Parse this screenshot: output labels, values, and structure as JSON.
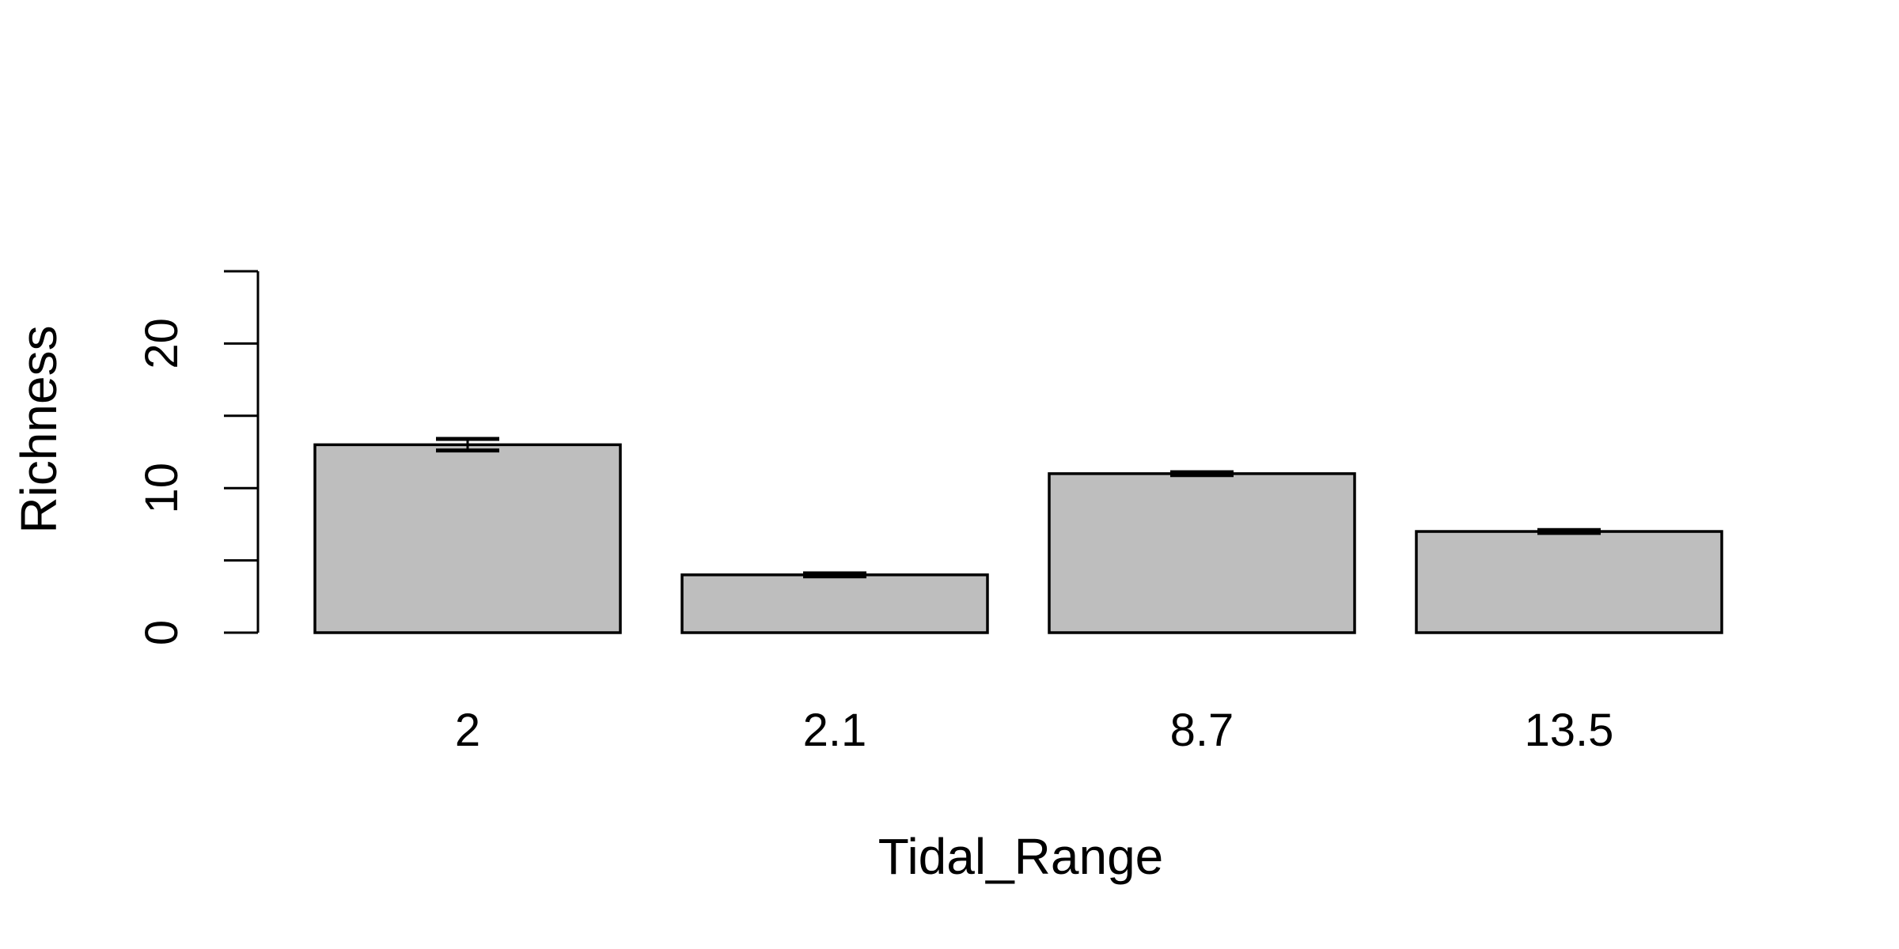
{
  "chart_data": {
    "type": "bar",
    "title": "",
    "xlabel": "Tidal_Range",
    "ylabel": "Richness",
    "categories": [
      "2",
      "2.1",
      "8.7",
      "13.5"
    ],
    "values": [
      13,
      4,
      11,
      7
    ],
    "error": [
      0.4,
      0.1,
      0.1,
      0.1
    ],
    "ylim": [
      0,
      25
    ],
    "y_ticks": [
      0,
      5,
      10,
      15,
      20,
      25
    ],
    "y_tick_labels": [
      "0",
      "",
      "10",
      "",
      "20",
      ""
    ],
    "grid": false,
    "legend": "none",
    "bar_color": "#bebebe",
    "edge_color": "#000000"
  }
}
